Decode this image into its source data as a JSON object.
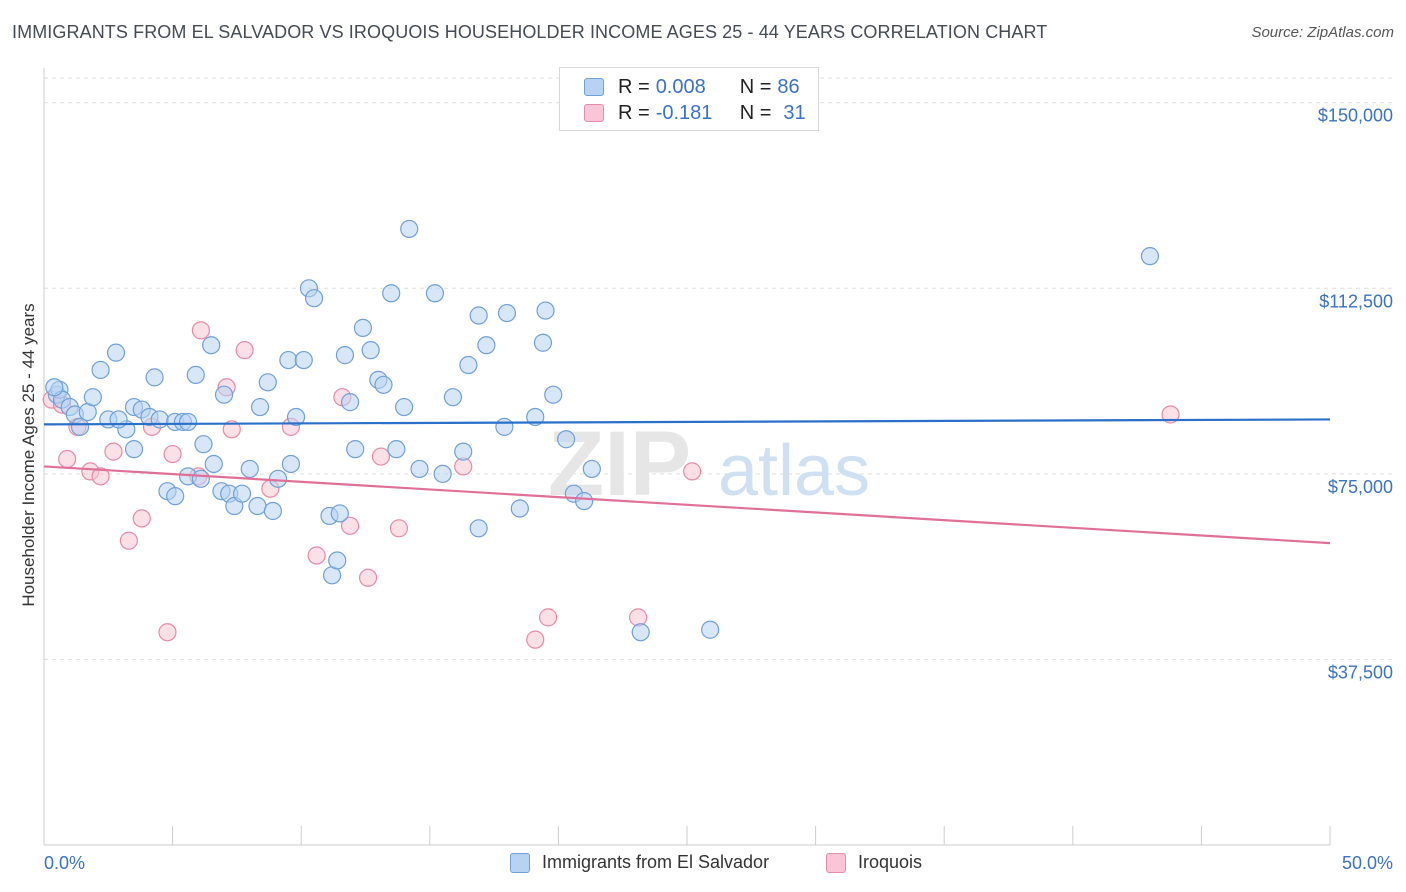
{
  "title": "IMMIGRANTS FROM EL SALVADOR VS IROQUOIS HOUSEHOLDER INCOME AGES 25 - 44 YEARS CORRELATION CHART",
  "source": "Source: ZipAtlas.com",
  "watermark": {
    "zip": "ZIP",
    "atlas": "atlas"
  },
  "colors": {
    "blue_fill": "#b8d3f2",
    "blue_stroke": "#6fa0d8",
    "blue_line": "#2a6fc9",
    "pink_fill": "#f8c6d6",
    "pink_stroke": "#e88aa8",
    "pink_line": "#e07098",
    "label_blue": "#3a72c4",
    "grid": "#dddddd"
  },
  "legend": {
    "rows": [
      {
        "r_label": "R = ",
        "r_value": "0.008",
        "n_label": "N = ",
        "n_value": "86"
      },
      {
        "r_label": "R = ",
        "r_value": "-0.181",
        "n_label": "N = ",
        "n_value": "31"
      }
    ]
  },
  "chart_data": {
    "type": "scatter",
    "title": "IMMIGRANTS FROM EL SALVADOR VS IROQUOIS HOUSEHOLDER INCOME AGES 25 - 44 YEARS CORRELATION CHART",
    "xlabel": "",
    "ylabel": "Householder Income Ages 25 - 44 years",
    "xlim": [
      0,
      50
    ],
    "ylim": [
      0,
      155000
    ],
    "x_tick_labels": [
      "0.0%",
      "50.0%"
    ],
    "y_ticks": [
      37500,
      75000,
      112500,
      150000
    ],
    "y_tick_labels": [
      "$37,500",
      "$75,000",
      "$112,500",
      "$150,000"
    ],
    "grid": true,
    "series": [
      {
        "name": "Immigrants from El Salvador",
        "trend": {
          "x0": 0,
          "y0": 85000,
          "x1": 50,
          "y1": 86000
        },
        "points": [
          [
            0.5,
            91000
          ],
          [
            0.6,
            92000
          ],
          [
            0.7,
            90000
          ],
          [
            1.0,
            88500
          ],
          [
            1.2,
            87000
          ],
          [
            1.4,
            84500
          ],
          [
            1.7,
            87500
          ],
          [
            1.9,
            90500
          ],
          [
            2.2,
            96000
          ],
          [
            2.5,
            86000
          ],
          [
            2.8,
            99500
          ],
          [
            3.2,
            84000
          ],
          [
            3.5,
            80000
          ],
          [
            3.5,
            88500
          ],
          [
            3.8,
            88000
          ],
          [
            4.1,
            86500
          ],
          [
            4.3,
            94500
          ],
          [
            4.5,
            86000
          ],
          [
            4.8,
            71500
          ],
          [
            5.1,
            85500
          ],
          [
            5.1,
            70500
          ],
          [
            5.4,
            85500
          ],
          [
            5.6,
            74500
          ],
          [
            5.9,
            95000
          ],
          [
            6.1,
            74000
          ],
          [
            6.2,
            81000
          ],
          [
            6.5,
            101000
          ],
          [
            6.6,
            77000
          ],
          [
            6.9,
            71500
          ],
          [
            7.0,
            91000
          ],
          [
            7.2,
            71000
          ],
          [
            7.4,
            68500
          ],
          [
            7.7,
            71000
          ],
          [
            8.0,
            76000
          ],
          [
            8.3,
            68500
          ],
          [
            8.4,
            88500
          ],
          [
            8.7,
            93500
          ],
          [
            8.9,
            67500
          ],
          [
            9.1,
            74000
          ],
          [
            9.5,
            98000
          ],
          [
            9.6,
            77000
          ],
          [
            9.8,
            86500
          ],
          [
            10.1,
            98000
          ],
          [
            10.3,
            112500
          ],
          [
            10.5,
            110500
          ],
          [
            11.1,
            66500
          ],
          [
            11.2,
            54500
          ],
          [
            11.4,
            57500
          ],
          [
            11.5,
            67000
          ],
          [
            11.7,
            99000
          ],
          [
            11.9,
            89500
          ],
          [
            12.1,
            80000
          ],
          [
            12.4,
            104500
          ],
          [
            12.7,
            100000
          ],
          [
            13.0,
            94000
          ],
          [
            13.2,
            93000
          ],
          [
            13.5,
            111500
          ],
          [
            13.7,
            80000
          ],
          [
            14.0,
            88500
          ],
          [
            14.2,
            124500
          ],
          [
            14.6,
            76000
          ],
          [
            15.2,
            111500
          ],
          [
            15.5,
            75000
          ],
          [
            15.9,
            90500
          ],
          [
            16.3,
            79500
          ],
          [
            16.5,
            97000
          ],
          [
            16.9,
            64000
          ],
          [
            16.9,
            107000
          ],
          [
            17.2,
            101000
          ],
          [
            17.9,
            84500
          ],
          [
            18.0,
            107500
          ],
          [
            18.5,
            68000
          ],
          [
            19.1,
            86500
          ],
          [
            19.4,
            101500
          ],
          [
            19.5,
            108000
          ],
          [
            19.8,
            91000
          ],
          [
            20.3,
            82000
          ],
          [
            20.6,
            71000
          ],
          [
            21.0,
            69500
          ],
          [
            21.3,
            76000
          ],
          [
            23.2,
            43000
          ],
          [
            25.9,
            43500
          ],
          [
            43.0,
            119000
          ],
          [
            0.4,
            92500
          ],
          [
            2.9,
            86000
          ],
          [
            5.6,
            85500
          ]
        ]
      },
      {
        "name": "Iroquois",
        "trend": {
          "x0": 0,
          "y0": 76500,
          "x1": 50,
          "y1": 61000
        },
        "points": [
          [
            0.3,
            90000
          ],
          [
            0.7,
            89000
          ],
          [
            0.9,
            78000
          ],
          [
            1.3,
            84500
          ],
          [
            1.8,
            75500
          ],
          [
            2.2,
            74500
          ],
          [
            2.7,
            79500
          ],
          [
            3.3,
            61500
          ],
          [
            3.8,
            66000
          ],
          [
            4.2,
            84500
          ],
          [
            4.8,
            43000
          ],
          [
            5.0,
            79000
          ],
          [
            6.0,
            74500
          ],
          [
            6.1,
            104000
          ],
          [
            7.1,
            92500
          ],
          [
            7.3,
            84000
          ],
          [
            7.8,
            100000
          ],
          [
            8.8,
            72000
          ],
          [
            9.6,
            84500
          ],
          [
            10.6,
            58500
          ],
          [
            11.6,
            90500
          ],
          [
            11.9,
            64500
          ],
          [
            12.6,
            54000
          ],
          [
            13.1,
            78500
          ],
          [
            13.8,
            64000
          ],
          [
            16.3,
            76500
          ],
          [
            19.1,
            41500
          ],
          [
            19.6,
            46000
          ],
          [
            23.1,
            46000
          ],
          [
            25.2,
            75500
          ],
          [
            43.8,
            87000
          ]
        ]
      }
    ]
  },
  "bottom_legend": {
    "items": [
      {
        "label": "Immigrants from El Salvador"
      },
      {
        "label": "Iroquois"
      }
    ]
  }
}
